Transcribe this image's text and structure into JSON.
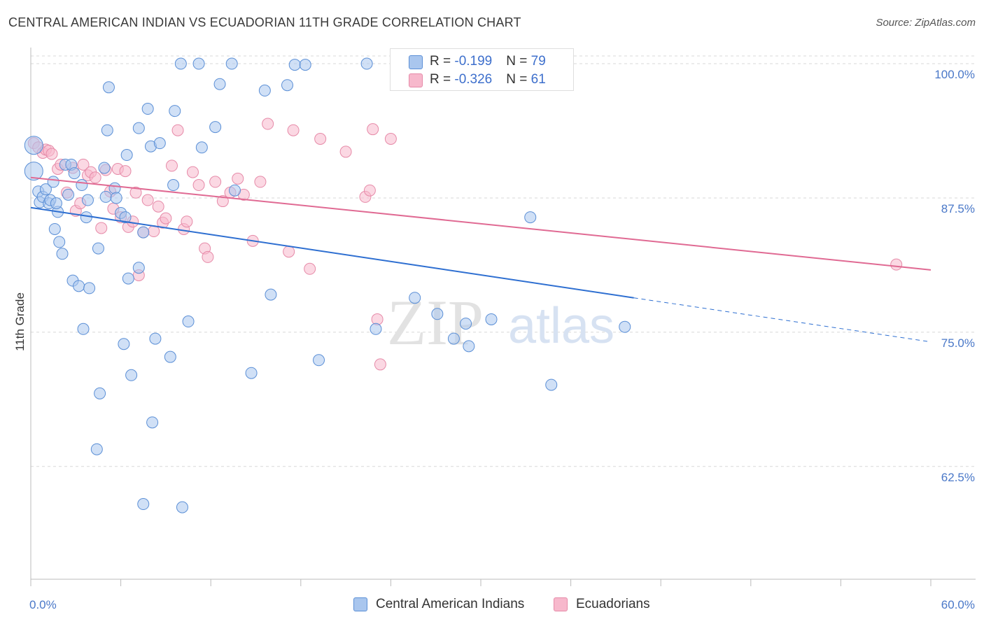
{
  "title": "CENTRAL AMERICAN INDIAN VS ECUADORIAN 11TH GRADE CORRELATION CHART",
  "source": "Source: ZipAtlas.com",
  "watermark": {
    "zip": "ZIP",
    "atlas": "atlas"
  },
  "legend": {
    "row1": {
      "r_label": "R = ",
      "r_value": "-0.199",
      "n_label": "N = ",
      "n_value": "79"
    },
    "row2": {
      "r_label": "R = ",
      "r_value": "-0.326",
      "n_label": "N = ",
      "n_value": "61"
    }
  },
  "bottom_legend": {
    "series1": "Central American Indians",
    "series2": "Ecuadorians"
  },
  "colors": {
    "blue_fill": "#a9c6ee",
    "blue_stroke": "#5b8fd6",
    "blue_line": "#2e6fd1",
    "pink_fill": "#f7b8cc",
    "pink_stroke": "#e68aa8",
    "pink_line": "#e06a93",
    "grid": "#d8d8d8",
    "axis_label": "#4a78c8"
  },
  "chart_data": {
    "type": "scatter",
    "title": "CENTRAL AMERICAN INDIAN VS ECUADORIAN 11TH GRADE CORRELATION CHART",
    "xlabel": "",
    "ylabel": "11th Grade",
    "xlim": [
      0,
      60
    ],
    "ylim": [
      52,
      101.5
    ],
    "x_tick_labels": [
      "0.0%",
      "60.0%"
    ],
    "y_ticks": [
      62.5,
      75.0,
      87.5,
      100.0
    ],
    "y_tick_labels": [
      "62.5%",
      "75.0%",
      "87.5%",
      "100.0%"
    ],
    "grid": "horizontal dashed",
    "series": [
      {
        "name": "Central American Indians",
        "color": "#5b8fd6",
        "R": -0.199,
        "N": 79,
        "trend": {
          "x": [
            0,
            40.2
          ],
          "y": [
            86.6,
            78.2
          ],
          "dashed_extension": {
            "x": [
              40.2,
              60
            ],
            "y": [
              78.2,
              74.1
            ]
          }
        },
        "points": [
          [
            0.2,
            92.4
          ],
          [
            0.2,
            90.0
          ],
          [
            0.5,
            88.1
          ],
          [
            0.6,
            87.1
          ],
          [
            0.8,
            87.6
          ],
          [
            1.0,
            88.3
          ],
          [
            1.2,
            87.0
          ],
          [
            1.3,
            87.3
          ],
          [
            1.5,
            89.0
          ],
          [
            1.6,
            84.6
          ],
          [
            1.8,
            86.2
          ],
          [
            1.9,
            83.4
          ],
          [
            2.1,
            82.3
          ],
          [
            2.3,
            90.6
          ],
          [
            2.5,
            87.8
          ],
          [
            2.7,
            90.6
          ],
          [
            2.8,
            79.8
          ],
          [
            2.9,
            89.8
          ],
          [
            3.2,
            79.3
          ],
          [
            3.4,
            88.7
          ],
          [
            3.5,
            75.3
          ],
          [
            3.7,
            85.7
          ],
          [
            3.8,
            87.3
          ],
          [
            3.9,
            79.1
          ],
          [
            4.5,
            82.8
          ],
          [
            4.6,
            69.3
          ],
          [
            4.9,
            90.3
          ],
          [
            5.0,
            87.6
          ],
          [
            5.1,
            93.8
          ],
          [
            5.2,
            97.8
          ],
          [
            5.6,
            88.4
          ],
          [
            5.7,
            87.5
          ],
          [
            6.0,
            86.1
          ],
          [
            6.2,
            73.9
          ],
          [
            6.3,
            85.7
          ],
          [
            6.4,
            91.5
          ],
          [
            6.5,
            80.0
          ],
          [
            6.7,
            71.0
          ],
          [
            7.2,
            94.0
          ],
          [
            7.2,
            81.0
          ],
          [
            7.5,
            84.3
          ],
          [
            7.8,
            95.8
          ],
          [
            8.0,
            92.3
          ],
          [
            8.3,
            74.4
          ],
          [
            8.6,
            92.6
          ],
          [
            9.3,
            72.7
          ],
          [
            9.5,
            88.7
          ],
          [
            9.6,
            95.6
          ],
          [
            10.0,
            100.0
          ],
          [
            10.5,
            76.0
          ],
          [
            11.2,
            100.0
          ],
          [
            11.4,
            92.2
          ],
          [
            12.3,
            94.1
          ],
          [
            12.6,
            98.1
          ],
          [
            13.4,
            100.0
          ],
          [
            13.6,
            88.2
          ],
          [
            14.7,
            71.2
          ],
          [
            15.6,
            97.5
          ],
          [
            16.0,
            78.5
          ],
          [
            17.1,
            98.0
          ],
          [
            17.6,
            99.9
          ],
          [
            18.3,
            99.9
          ],
          [
            19.2,
            72.4
          ],
          [
            22.4,
            100.0
          ],
          [
            23.0,
            75.3
          ],
          [
            25.6,
            78.2
          ],
          [
            27.1,
            76.7
          ],
          [
            28.2,
            74.4
          ],
          [
            29.0,
            75.8
          ],
          [
            29.2,
            73.7
          ],
          [
            30.7,
            76.2
          ],
          [
            33.3,
            85.7
          ],
          [
            34.7,
            70.1
          ],
          [
            39.6,
            75.5
          ],
          [
            4.4,
            64.1
          ],
          [
            7.5,
            59.0
          ],
          [
            10.1,
            58.7
          ],
          [
            8.1,
            66.6
          ],
          [
            1.7,
            87.0
          ]
        ]
      },
      {
        "name": "Ecuadorians",
        "color": "#e68aa8",
        "R": -0.326,
        "N": 61,
        "trend": {
          "x": [
            0,
            60
          ],
          "y": [
            89.4,
            80.8
          ]
        },
        "points": [
          [
            0.2,
            92.6
          ],
          [
            0.5,
            92.2
          ],
          [
            0.8,
            91.7
          ],
          [
            1.0,
            92.0
          ],
          [
            1.2,
            91.9
          ],
          [
            1.4,
            91.6
          ],
          [
            1.8,
            90.2
          ],
          [
            2.0,
            90.6
          ],
          [
            2.4,
            88.0
          ],
          [
            2.8,
            90.3
          ],
          [
            3.0,
            86.3
          ],
          [
            3.3,
            87.0
          ],
          [
            3.5,
            90.6
          ],
          [
            3.8,
            89.6
          ],
          [
            4.0,
            89.9
          ],
          [
            4.3,
            89.4
          ],
          [
            4.7,
            84.7
          ],
          [
            5.0,
            90.1
          ],
          [
            5.3,
            88.1
          ],
          [
            5.5,
            86.5
          ],
          [
            5.8,
            90.2
          ],
          [
            6.0,
            85.7
          ],
          [
            6.3,
            90.0
          ],
          [
            6.5,
            84.8
          ],
          [
            6.8,
            85.3
          ],
          [
            7.0,
            88.0
          ],
          [
            7.2,
            80.3
          ],
          [
            7.5,
            84.3
          ],
          [
            7.8,
            87.3
          ],
          [
            8.2,
            84.4
          ],
          [
            8.5,
            86.7
          ],
          [
            8.8,
            85.2
          ],
          [
            9.0,
            85.6
          ],
          [
            9.4,
            90.5
          ],
          [
            9.8,
            93.8
          ],
          [
            10.2,
            84.6
          ],
          [
            10.4,
            85.3
          ],
          [
            10.8,
            89.9
          ],
          [
            11.2,
            88.7
          ],
          [
            11.6,
            82.8
          ],
          [
            11.8,
            82.0
          ],
          [
            12.3,
            89.0
          ],
          [
            12.8,
            87.2
          ],
          [
            13.3,
            88.0
          ],
          [
            13.8,
            89.3
          ],
          [
            14.2,
            87.8
          ],
          [
            14.8,
            83.5
          ],
          [
            15.3,
            89.0
          ],
          [
            15.8,
            94.4
          ],
          [
            17.2,
            82.5
          ],
          [
            17.5,
            93.8
          ],
          [
            18.6,
            80.9
          ],
          [
            19.3,
            93.0
          ],
          [
            21.0,
            91.8
          ],
          [
            22.3,
            87.6
          ],
          [
            22.6,
            88.2
          ],
          [
            22.8,
            93.9
          ],
          [
            23.1,
            76.2
          ],
          [
            23.3,
            72.0
          ],
          [
            24.0,
            93.0
          ],
          [
            57.7,
            81.3
          ]
        ]
      }
    ]
  }
}
